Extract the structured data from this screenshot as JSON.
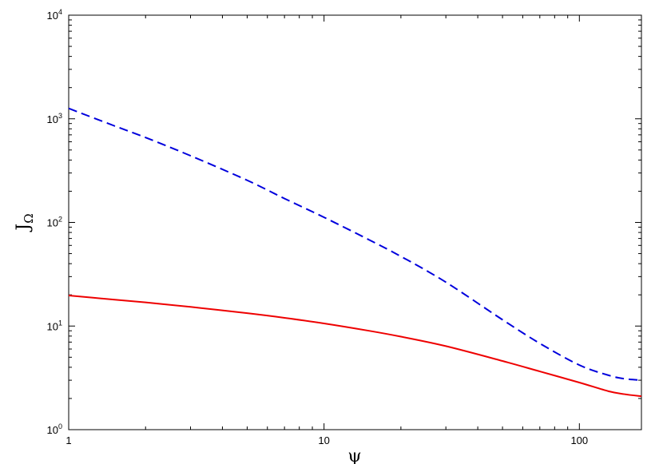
{
  "chart_data": {
    "type": "line",
    "title": "",
    "xlabel": "ψ",
    "ylabel_main": "J",
    "ylabel_sub": "Ω",
    "x_scale": "log",
    "y_scale": "log",
    "xlim": [
      1,
      175
    ],
    "ylim": [
      1,
      10000
    ],
    "grid": false,
    "legend": "none",
    "x_ticks": [
      {
        "value": 1,
        "label": "1"
      },
      {
        "value": 10,
        "label": "10"
      },
      {
        "value": 100,
        "label": "100"
      }
    ],
    "y_ticks": [
      {
        "value": 1,
        "base": "10",
        "exp": "0"
      },
      {
        "value": 10,
        "base": "10",
        "exp": "1"
      },
      {
        "value": 100,
        "base": "10",
        "exp": "2"
      },
      {
        "value": 1000,
        "base": "10",
        "exp": "3"
      },
      {
        "value": 10000,
        "base": "10",
        "exp": "4"
      }
    ],
    "series": [
      {
        "color": "#0000dd",
        "style": "dashed",
        "x": [
          1,
          1.5,
          2,
          3,
          5,
          7,
          10,
          15,
          20,
          30,
          50,
          70,
          100,
          130,
          150,
          175
        ],
        "y": [
          1260,
          860,
          660,
          440,
          255,
          170,
          112,
          68,
          47,
          26.5,
          11.5,
          6.8,
          4.2,
          3.35,
          3.1,
          3.0
        ]
      },
      {
        "color": "#ee0000",
        "style": "solid",
        "x": [
          1,
          1.5,
          2,
          3,
          5,
          7,
          10,
          15,
          20,
          30,
          50,
          70,
          100,
          130,
          150,
          175
        ],
        "y": [
          19.7,
          18.0,
          16.9,
          15.3,
          13.3,
          12.0,
          10.6,
          9.0,
          7.9,
          6.4,
          4.6,
          3.65,
          2.85,
          2.35,
          2.2,
          2.1
        ]
      }
    ]
  }
}
